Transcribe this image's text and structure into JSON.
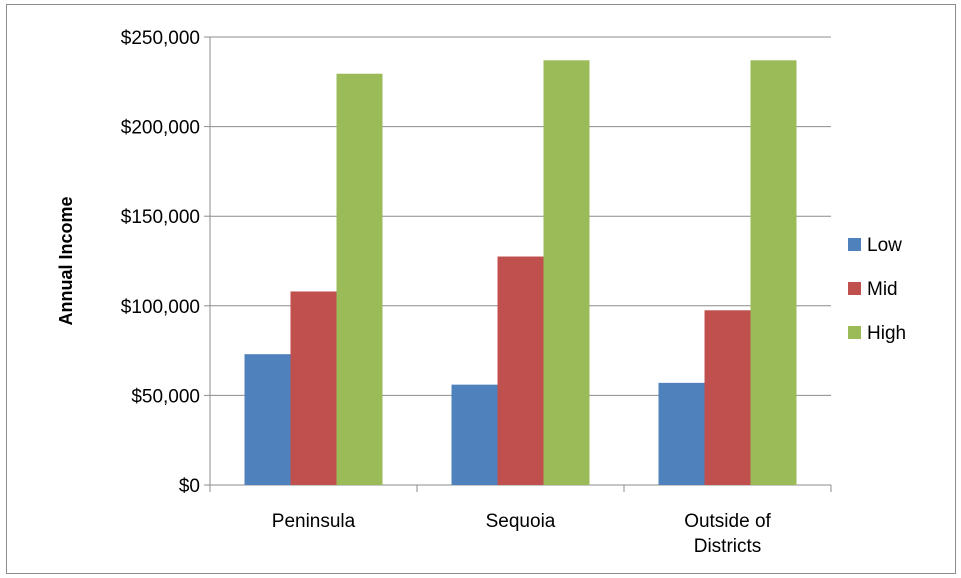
{
  "chart_data": {
    "type": "bar",
    "title": "",
    "xlabel": "",
    "ylabel": "Annual Income",
    "categories": [
      "Peninsula",
      "Sequoia",
      "Outside of Districts"
    ],
    "series": [
      {
        "name": "Low",
        "color": "#4f81bd",
        "values": [
          73000,
          56000,
          57000
        ]
      },
      {
        "name": "Mid",
        "color": "#c0504d",
        "values": [
          108000,
          127500,
          97500
        ]
      },
      {
        "name": "High",
        "color": "#9bbb59",
        "values": [
          229500,
          237000,
          237000
        ]
      }
    ],
    "ylim": [
      0,
      250000
    ],
    "yticks": [
      0,
      50000,
      100000,
      150000,
      200000,
      250000
    ],
    "ytick_labels": [
      "$0",
      "$50,000",
      "$100,000",
      "$150,000",
      "$200,000",
      "$250,000"
    ],
    "grid": true,
    "legend_position": "right"
  }
}
